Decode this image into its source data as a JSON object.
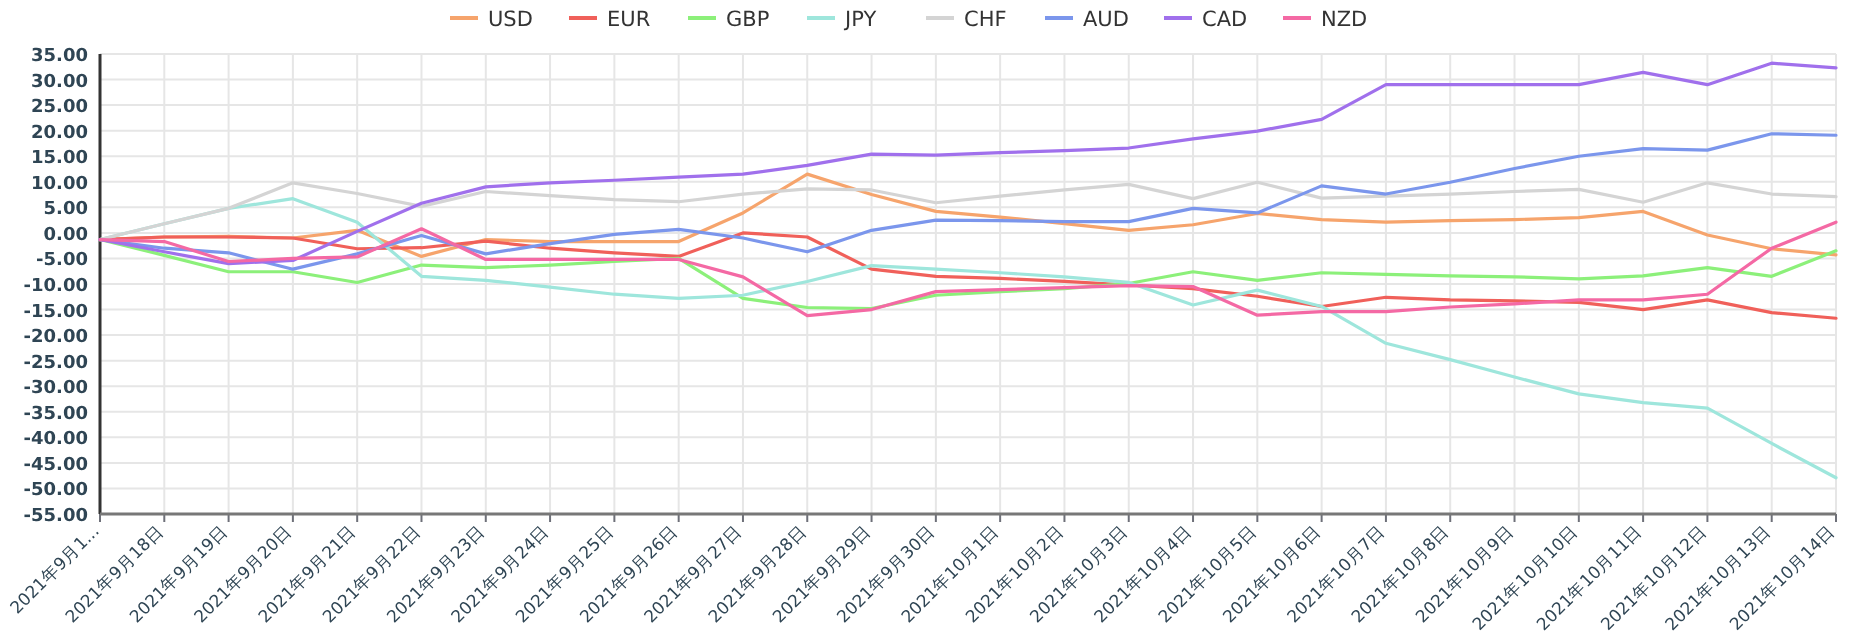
{
  "chart_data": {
    "type": "line",
    "categories": [
      "2021年9月1...",
      "2021年9月18日",
      "2021年9月19日",
      "2021年9月20日",
      "2021年9月21日",
      "2021年9月22日",
      "2021年9月23日",
      "2021年9月24日",
      "2021年9月25日",
      "2021年9月26日",
      "2021年9月27日",
      "2021年9月28日",
      "2021年9月29日",
      "2021年9月30日",
      "2021年10月1日",
      "2021年10月2日",
      "2021年10月3日",
      "2021年10月4日",
      "2021年10月5日",
      "2021年10月6日",
      "2021年10月7日",
      "2021年10月8日",
      "2021年10月9日",
      "2021年10月10日",
      "2021年10月11日",
      "2021年10月12日",
      "2021年10月13日",
      "2021年10月14日"
    ],
    "series": [
      {
        "name": "USD",
        "color": "#f6a46c",
        "values": [
          -1.3,
          -0.8,
          -0.7,
          -1.0,
          0.5,
          -4.6,
          -1.3,
          -1.7,
          -1.7,
          -1.7,
          3.9,
          11.5,
          7.5,
          4.2,
          3.1,
          1.8,
          0.5,
          1.6,
          3.8,
          2.6,
          2.1,
          2.4,
          2.6,
          3.0,
          4.2,
          -0.4,
          -3.1,
          -4.3
        ]
      },
      {
        "name": "EUR",
        "color": "#f0605a",
        "values": [
          -1.3,
          -0.8,
          -0.8,
          -1.0,
          -3.1,
          -2.9,
          -1.6,
          -3.0,
          -3.9,
          -4.6,
          0.0,
          -0.8,
          -7.1,
          -8.5,
          -8.9,
          -9.5,
          -10.2,
          -10.9,
          -12.4,
          -14.4,
          -12.6,
          -13.1,
          -13.3,
          -13.6,
          -15.0,
          -13.1,
          -15.6,
          -16.7
        ]
      },
      {
        "name": "GBP",
        "color": "#8cf07a",
        "values": [
          -1.3,
          -4.4,
          -7.6,
          -7.6,
          -9.7,
          -6.3,
          -6.8,
          -6.3,
          -5.6,
          -5.0,
          -12.8,
          -14.6,
          -14.8,
          -12.2,
          -11.5,
          -10.9,
          -9.9,
          -7.6,
          -9.3,
          -7.8,
          -8.1,
          -8.4,
          -8.6,
          -9.0,
          -8.4,
          -6.8,
          -8.5,
          -3.5
        ]
      },
      {
        "name": "JPY",
        "color": "#9ee6dc",
        "values": [
          -1.3,
          1.8,
          4.8,
          6.7,
          2.1,
          -8.5,
          -9.3,
          -10.6,
          -12.0,
          -12.8,
          -12.2,
          -9.5,
          -6.4,
          -7.1,
          -7.8,
          -8.6,
          -9.7,
          -14.1,
          -11.2,
          -14.4,
          -21.6,
          -24.8,
          -28.2,
          -31.5,
          -33.2,
          -34.3,
          -41.2,
          -47.9
        ]
      },
      {
        "name": "CHF",
        "color": "#d4d4d4",
        "values": [
          -1.3,
          1.8,
          4.8,
          9.8,
          7.7,
          5.2,
          8.1,
          7.3,
          6.5,
          6.1,
          7.6,
          8.6,
          8.4,
          5.9,
          7.2,
          8.4,
          9.5,
          6.7,
          9.9,
          6.8,
          7.2,
          7.6,
          8.1,
          8.5,
          6.0,
          9.8,
          7.6,
          7.1
        ]
      },
      {
        "name": "AUD",
        "color": "#7b96ec",
        "values": [
          -1.3,
          -3.0,
          -3.9,
          -7.1,
          -4.1,
          -0.5,
          -4.1,
          -2.1,
          -0.3,
          0.7,
          -1.0,
          -3.7,
          0.5,
          2.5,
          2.4,
          2.2,
          2.2,
          4.8,
          3.9,
          9.2,
          7.6,
          9.9,
          12.6,
          15.0,
          16.5,
          16.2,
          19.4,
          19.1
        ]
      },
      {
        "name": "CAD",
        "color": "#a070ec",
        "values": [
          -1.3,
          -3.7,
          -6.0,
          -5.4,
          0.3,
          5.8,
          9.0,
          9.8,
          10.3,
          10.9,
          11.5,
          13.2,
          15.4,
          15.2,
          15.7,
          16.1,
          16.6,
          18.4,
          19.9,
          22.2,
          29.0,
          29.0,
          29.0,
          29.0,
          31.4,
          29.0,
          33.2,
          32.3
        ]
      },
      {
        "name": "NZD",
        "color": "#f469a4",
        "values": [
          -1.3,
          -1.7,
          -5.6,
          -5.0,
          -4.7,
          0.8,
          -5.2,
          -5.2,
          -5.2,
          -5.2,
          -8.6,
          -16.2,
          -15.0,
          -11.5,
          -11.1,
          -10.7,
          -10.3,
          -10.5,
          -16.1,
          -15.4,
          -15.4,
          -14.5,
          -13.9,
          -13.1,
          -13.1,
          -12.0,
          -3.0,
          2.1
        ]
      }
    ],
    "ylim": [
      -55,
      35
    ],
    "yticks": [
      {
        "value": 35,
        "label": "35.00"
      },
      {
        "value": 30,
        "label": "30.00"
      },
      {
        "value": 25,
        "label": "25.00"
      },
      {
        "value": 20,
        "label": "20.00"
      },
      {
        "value": 15,
        "label": "15.00"
      },
      {
        "value": 10,
        "label": "10.00"
      },
      {
        "value": 5,
        "label": "5.00"
      },
      {
        "value": 0,
        "label": "0.00"
      },
      {
        "value": -5,
        "label": "-5.00"
      },
      {
        "value": -10,
        "label": "-10.00"
      },
      {
        "value": -15,
        "label": "-15.00"
      },
      {
        "value": -20,
        "label": "-20.00"
      },
      {
        "value": -25,
        "label": "-25.00"
      },
      {
        "value": -30,
        "label": "-30.00"
      },
      {
        "value": -35,
        "label": "-35.00"
      },
      {
        "value": -40,
        "label": "-40.00"
      },
      {
        "value": -45,
        "label": "-45.00"
      },
      {
        "value": -50,
        "label": "-50.00"
      },
      {
        "value": -55,
        "label": "-55.00"
      }
    ],
    "grid": true,
    "legend": "top",
    "marker": "none",
    "line_style": "solid"
  }
}
